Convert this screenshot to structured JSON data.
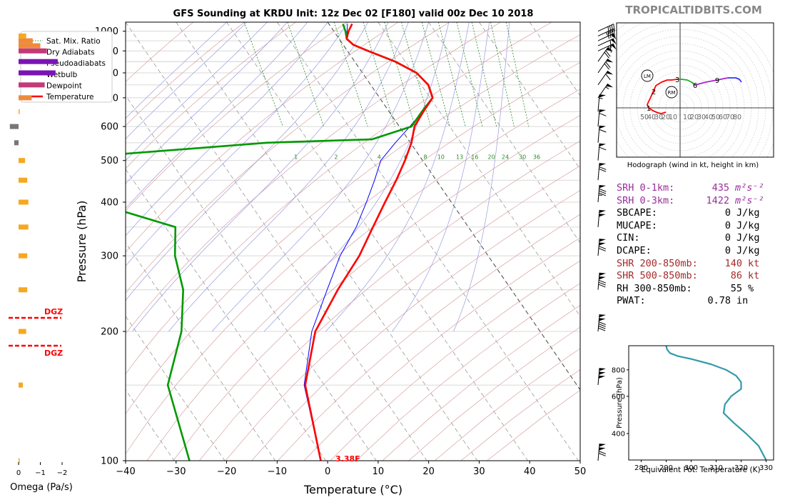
{
  "header": {
    "title": "GFS Sounding at KRDU Init: 12z Dec 02 [F180] valid 00z Dec 10 2018",
    "watermark": "TROPICALTIDBITS.COM"
  },
  "legend": [
    {
      "label": "Sat. Mix. Ratio",
      "color": "#2a8a2a",
      "style": "dotted"
    },
    {
      "label": "Dry Adiabats",
      "color": "#c0504d",
      "style": "thin"
    },
    {
      "label": "Pseudoadiabats",
      "color": "#6a6ad0",
      "style": "thin"
    },
    {
      "label": "Wetbulb",
      "color": "#0000ff",
      "style": "solid"
    },
    {
      "label": "Dewpoint",
      "color": "#009900",
      "style": "thick"
    },
    {
      "label": "Temperature",
      "color": "#ff0000",
      "style": "thick"
    }
  ],
  "chart_data": [
    {
      "type": "line",
      "name": "skewt",
      "xlabel": "Temperature (°C)",
      "ylabel": "Pressure (hPa)",
      "xlim": [
        -40,
        50
      ],
      "ylim": [
        1050,
        100
      ],
      "x_ticks": [
        -40,
        -30,
        -20,
        -10,
        0,
        10,
        20,
        30,
        40,
        50
      ],
      "y_ticks": [
        1000,
        900,
        800,
        700,
        600,
        500,
        400,
        300,
        200,
        100
      ],
      "mixing_ratio_labels": [
        "1",
        "2",
        "4",
        "6",
        "8",
        "10",
        "13",
        "16",
        "20",
        "24",
        "30",
        "36"
      ],
      "surface_label": "3.38F",
      "series": [
        {
          "name": "Temperature",
          "color": "#ff0000",
          "points": [
            [
              1040,
              4.6
            ],
            [
              1000,
              2.9
            ],
            [
              960,
              1.5
            ],
            [
              930,
              2.0
            ],
            [
              900,
              4.1
            ],
            [
              850,
              8.0
            ],
            [
              800,
              10.7
            ],
            [
              750,
              11.4
            ],
            [
              700,
              10.5
            ],
            [
              650,
              6.8
            ],
            [
              600,
              3.0
            ],
            [
              550,
              0.2
            ],
            [
              500,
              -3.5
            ],
            [
              450,
              -7.9
            ],
            [
              400,
              -13.1
            ],
            [
              350,
              -18.9
            ],
            [
              300,
              -25.5
            ],
            [
              250,
              -34.4
            ],
            [
              200,
              -44.5
            ],
            [
              150,
              -53.8
            ],
            [
              100,
              -61.0
            ]
          ]
        },
        {
          "name": "Dewpoint",
          "color": "#009900",
          "points": [
            [
              1040,
              2.8
            ],
            [
              1000,
              2.3
            ],
            [
              960,
              1.5
            ],
            [
              930,
              2.0
            ],
            [
              900,
              4.1
            ],
            [
              850,
              8.0
            ],
            [
              800,
              10.7
            ],
            [
              750,
              11.4
            ],
            [
              700,
              10.5
            ],
            [
              650,
              6.5
            ],
            [
              600,
              2.4
            ],
            [
              560,
              -7.2
            ],
            [
              550,
              -28.4
            ],
            [
              500,
              -76
            ],
            [
              400,
              -71
            ],
            [
              350,
              -58
            ],
            [
              300,
              -62
            ],
            [
              250,
              -65
            ],
            [
              200,
              -71
            ],
            [
              150,
              -81
            ],
            [
              100,
              -87
            ]
          ]
        },
        {
          "name": "Wetbulb",
          "color": "#0000ff",
          "points": [
            [
              1040,
              3.7
            ],
            [
              1000,
              2.6
            ],
            [
              960,
              1.5
            ],
            [
              930,
              2.0
            ],
            [
              900,
              4.1
            ],
            [
              850,
              8.0
            ],
            [
              800,
              10.7
            ],
            [
              750,
              11.4
            ],
            [
              700,
              10.5
            ],
            [
              650,
              6.6
            ],
            [
              600,
              2.1
            ],
            [
              550,
              -3.0
            ],
            [
              500,
              -8.3
            ],
            [
              450,
              -12.2
            ],
            [
              400,
              -16.8
            ],
            [
              350,
              -22.2
            ],
            [
              300,
              -29.3
            ],
            [
              250,
              -36.5
            ],
            [
              200,
              -45.2
            ],
            [
              150,
              -54.0
            ],
            [
              100,
              -61.0
            ]
          ]
        }
      ]
    },
    {
      "type": "line",
      "name": "hodograph",
      "title": "Hodograph (wind in kt, height in km)",
      "x_ticks": [
        "50",
        "40",
        "30",
        "20",
        "10",
        "",
        "10",
        "20",
        "30",
        "40",
        "50",
        "60",
        "70",
        "80"
      ],
      "height_labels": [
        "1",
        "2",
        "3",
        "6",
        "9"
      ],
      "markers": [
        "LM",
        "RM"
      ],
      "series": [
        {
          "name": "0-3km",
          "color": "#ff0000",
          "points": [
            [
              -20,
              -6
            ],
            [
              -26,
              -8
            ],
            [
              -31,
              -7
            ],
            [
              -38,
              -4
            ],
            [
              -44,
              0
            ],
            [
              -46,
              4
            ],
            [
              -45,
              7
            ],
            [
              -42,
              13
            ],
            [
              -38,
              22
            ],
            [
              -34,
              31
            ],
            [
              -26,
              36
            ],
            [
              -18,
              39
            ],
            [
              -12,
              39
            ],
            [
              -4,
              40
            ]
          ]
        },
        {
          "name": "3-6km",
          "color": "#22aa22",
          "points": [
            [
              -4,
              40
            ],
            [
              2,
              40
            ],
            [
              10,
              39
            ],
            [
              16,
              36
            ],
            [
              21,
              32
            ]
          ]
        },
        {
          "name": "6-9km",
          "color": "#aa22cc",
          "points": [
            [
              21,
              32
            ],
            [
              36,
              36
            ],
            [
              52,
              39
            ],
            [
              67,
              42
            ]
          ]
        },
        {
          "name": "9-12km",
          "color": "#3333ff",
          "points": [
            [
              67,
              42
            ],
            [
              78,
              42
            ],
            [
              83,
              40
            ],
            [
              86,
              36
            ]
          ]
        }
      ]
    },
    {
      "type": "line",
      "name": "theta_e",
      "xlabel": "Equivalent Pot. Temperature (K)",
      "ylabel": "Pressure (hPa)",
      "xlim": [
        275,
        333
      ],
      "ylim": [
        1040,
        300
      ],
      "x_ticks": [
        280,
        290,
        300,
        310,
        320,
        330
      ],
      "y_ticks": [
        400,
        600,
        800
      ],
      "series": [
        {
          "name": "theta_e",
          "color": "#3399aa",
          "values": [
            [
              1040,
              290.0
            ],
            [
              1000,
              290.3
            ],
            [
              960,
              291.5
            ],
            [
              930,
              294.5
            ],
            [
              900,
              300.0
            ],
            [
              850,
              308.0
            ],
            [
              800,
              314.0
            ],
            [
              750,
              318.0
            ],
            [
              700,
              320.0
            ],
            [
              650,
              320.0
            ],
            [
              600,
              316.0
            ],
            [
              550,
              313.5
            ],
            [
              500,
              313.0
            ],
            [
              450,
              317.0
            ],
            [
              400,
              322.0
            ],
            [
              350,
              327.0
            ],
            [
              300,
              330.0
            ]
          ]
        }
      ]
    },
    {
      "type": "bar",
      "name": "omega",
      "xlabel": "Omega (Pa/s)",
      "x_ticks": [
        "0",
        "−1",
        "−2"
      ],
      "dgz_label": "DGZ",
      "values": [
        [
          100,
          -0.05
        ],
        [
          150,
          -0.2
        ],
        [
          200,
          -0.35
        ],
        [
          250,
          -0.4
        ],
        [
          300,
          -0.4
        ],
        [
          350,
          -0.45
        ],
        [
          400,
          -0.45
        ],
        [
          450,
          -0.4
        ],
        [
          500,
          -0.3
        ],
        [
          550,
          0.2
        ],
        [
          600,
          0.4
        ],
        [
          650,
          -0.05
        ],
        [
          700,
          -0.6
        ],
        [
          750,
          -1.2
        ],
        [
          800,
          -1.7
        ],
        [
          850,
          -1.8
        ],
        [
          900,
          -1.3
        ],
        [
          925,
          -1.0
        ],
        [
          950,
          -0.65
        ],
        [
          975,
          -0.35
        ]
      ]
    }
  ],
  "params": {
    "rows": [
      {
        "label": "SRH 0-1km:",
        "value": "435",
        "unit": "m²s⁻²",
        "color": "purple"
      },
      {
        "label": "SRH 0-3km:",
        "value": "1422",
        "unit": "m²s⁻²",
        "color": "purple"
      },
      {
        "label": "SBCAPE:",
        "value": "0",
        "unit": "J/kg",
        "color": "black"
      },
      {
        "label": "MUCAPE:",
        "value": "0",
        "unit": "J/kg",
        "color": "black"
      },
      {
        "label": "CIN:",
        "value": "0",
        "unit": "J/kg",
        "color": "black"
      },
      {
        "label": "DCAPE:",
        "value": "0",
        "unit": "J/kg",
        "color": "black"
      },
      {
        "label": "SHR 200-850mb:",
        "value": "140",
        "unit": "kt",
        "color": "brown"
      },
      {
        "label": "SHR 500-850mb:",
        "value": "86",
        "unit": "kt",
        "color": "brown"
      },
      {
        "label": "RH 300-850mb:",
        "value": "55",
        "unit": "%",
        "color": "black"
      },
      {
        "label": "PWAT:",
        "value": "0.78",
        "unit": "in",
        "color": "black"
      }
    ]
  },
  "barbs": [
    [
      1000,
      40
    ],
    [
      975,
      45
    ],
    [
      950,
      50
    ],
    [
      925,
      60
    ],
    [
      900,
      65
    ],
    [
      850,
      70
    ],
    [
      800,
      70
    ],
    [
      750,
      60
    ],
    [
      700,
      55
    ],
    [
      650,
      55
    ],
    [
      600,
      60
    ],
    [
      550,
      60
    ],
    [
      500,
      60
    ],
    [
      450,
      70
    ],
    [
      400,
      85
    ],
    [
      350,
      100
    ],
    [
      300,
      120
    ],
    [
      250,
      130
    ],
    [
      200,
      140
    ],
    [
      150,
      150
    ],
    [
      100,
      120
    ]
  ]
}
